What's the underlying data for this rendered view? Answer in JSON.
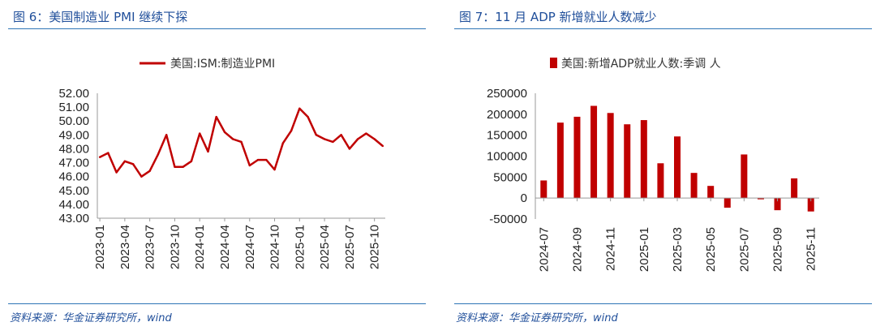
{
  "colors": {
    "accent": "#c00000",
    "title": "#1f4e9a",
    "rule": "#2e75b6"
  },
  "left": {
    "title": "图 6：美国制造业 PMI 继续下探",
    "source": "资料来源：华金证券研究所，wind"
  },
  "right": {
    "title": "图 7：11 月 ADP 新增就业人数减少",
    "source": "资料来源：华金证券研究所，wind"
  },
  "chart_data": [
    {
      "type": "line",
      "legend": "美国:ISM:制造业PMI",
      "ylim": [
        43,
        52
      ],
      "yticks": [
        "52.00",
        "51.00",
        "50.00",
        "49.00",
        "48.00",
        "47.00",
        "46.00",
        "45.00",
        "44.00",
        "43.00"
      ],
      "x": [
        "2023-01",
        "2023-02",
        "2023-03",
        "2023-04",
        "2023-05",
        "2023-06",
        "2023-07",
        "2023-08",
        "2023-09",
        "2023-10",
        "2023-11",
        "2023-12",
        "2024-01",
        "2024-02",
        "2024-03",
        "2024-04",
        "2024-05",
        "2024-06",
        "2024-07",
        "2024-08",
        "2024-09",
        "2024-10",
        "2024-11",
        "2024-12",
        "2025-01",
        "2025-02",
        "2025-03",
        "2025-04",
        "2025-05",
        "2025-06",
        "2025-07",
        "2025-08",
        "2025-09",
        "2025-10",
        "2025-11"
      ],
      "values": [
        47.4,
        47.7,
        46.3,
        47.1,
        46.9,
        46.0,
        46.4,
        47.6,
        49.0,
        46.7,
        46.7,
        47.1,
        49.1,
        47.8,
        50.3,
        49.2,
        48.7,
        48.5,
        46.8,
        47.2,
        47.2,
        46.5,
        48.4,
        49.3,
        50.9,
        50.3,
        49.0,
        48.7,
        48.5,
        49.0,
        48.0,
        48.7,
        49.1,
        48.7,
        48.2
      ],
      "xtick_labels": [
        "2023-01",
        "2023-04",
        "2023-07",
        "2023-10",
        "2024-01",
        "2024-04",
        "2024-07",
        "2024-10",
        "2025-01",
        "2025-04",
        "2025-07",
        "2025-10"
      ],
      "xtick_indices": [
        0,
        3,
        6,
        9,
        12,
        15,
        18,
        21,
        24,
        27,
        30,
        33
      ]
    },
    {
      "type": "bar",
      "legend": "美国:新增ADP就业人数:季调 人",
      "ylim": [
        -50000,
        250000
      ],
      "yticks": [
        "250000",
        "200000",
        "150000",
        "100000",
        "50000",
        "0",
        "-50000"
      ],
      "categories": [
        "2024-07",
        "2024-08",
        "2024-09",
        "2024-10",
        "2024-11",
        "2024-12",
        "2025-01",
        "2025-02",
        "2025-03",
        "2025-04",
        "2025-05",
        "2025-06",
        "2025-07",
        "2025-08",
        "2025-09",
        "2025-10",
        "2025-11"
      ],
      "values": [
        42000,
        180000,
        194000,
        220000,
        203000,
        176000,
        186000,
        83000,
        147000,
        60000,
        29000,
        -23000,
        104000,
        -3000,
        -29000,
        47000,
        -32000
      ],
      "xtick_labels": [
        "2024-07",
        "2024-09",
        "2024-11",
        "2025-01",
        "2025-03",
        "2025-05",
        "2025-07",
        "2025-09",
        "2025-11"
      ],
      "xtick_indices": [
        0,
        2,
        4,
        6,
        8,
        10,
        12,
        14,
        16
      ]
    }
  ]
}
